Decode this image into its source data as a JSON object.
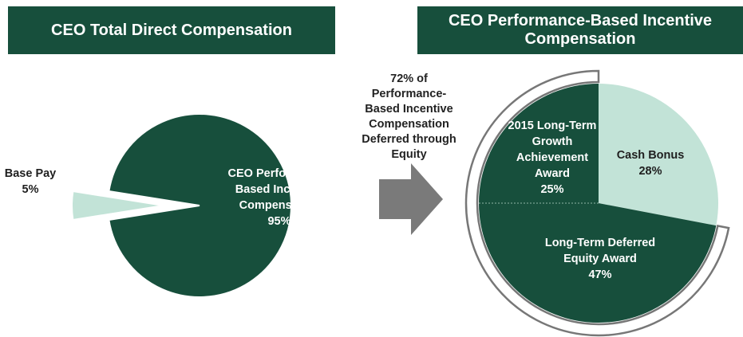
{
  "chart_data": [
    {
      "type": "pie",
      "title": "CEO Total Direct Compensation",
      "categories": [
        "Base Pay",
        "CEO Performance-Based Incentive Compensation"
      ],
      "values": [
        5,
        95
      ],
      "value_labels": [
        "5%",
        "95%"
      ],
      "colors": [
        "#c2e3d7",
        "#174f3c"
      ]
    },
    {
      "type": "pie",
      "title": "CEO Performance-Based Incentive Compensation",
      "categories": [
        "Cash Bonus",
        "Long-Term Deferred Equity Award",
        "2015 Long-Term Growth Achievement Award"
      ],
      "values": [
        28,
        47,
        25
      ],
      "value_labels": [
        "28%",
        "47%",
        "25%"
      ],
      "colors": [
        "#c2e3d7",
        "#174f3c",
        "#174f3c"
      ]
    }
  ],
  "annotation": [
    "72% of",
    "Performance-",
    "Based Incentive",
    "Compensation",
    "Deferred through",
    "Equity"
  ]
}
